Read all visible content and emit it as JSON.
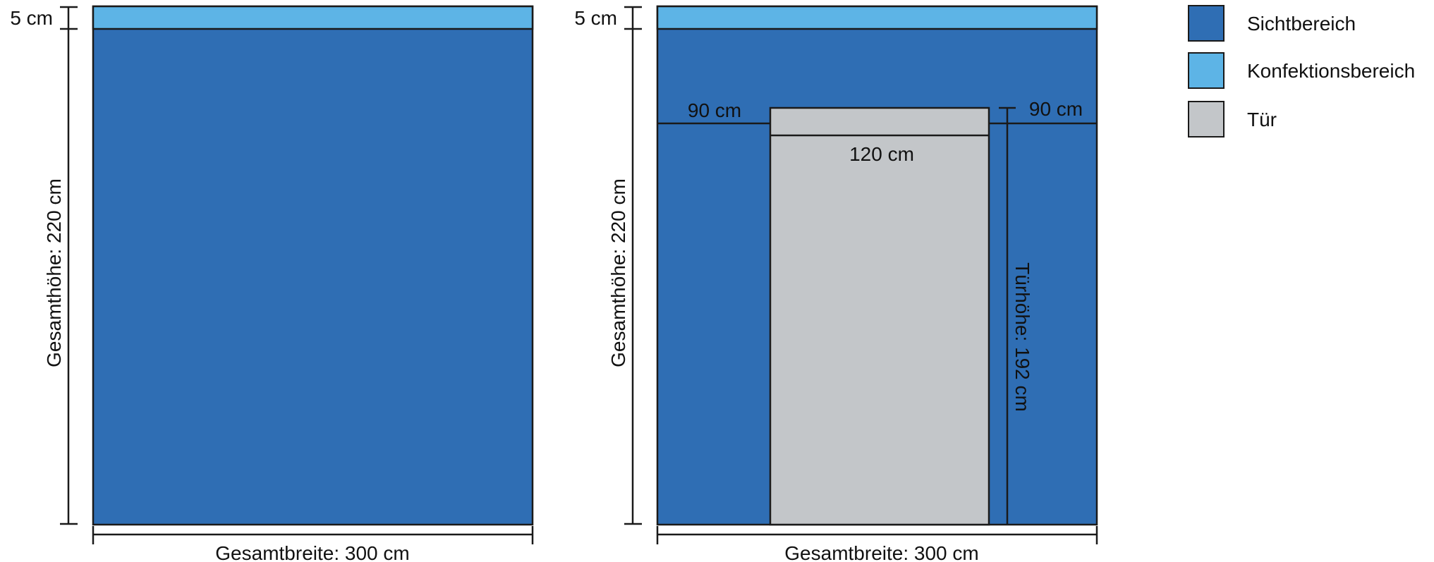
{
  "colors": {
    "sichtbereich": "#2f6eb4",
    "konfektionsbereich": "#5db4e6",
    "tuer": "#c3c6c9"
  },
  "diagram_left": {
    "top_label": "5 cm",
    "height_label": "Gesamthöhe: 220 cm",
    "width_label": "Gesamtbreite: 300 cm"
  },
  "diagram_right": {
    "top_label": "5 cm",
    "height_label": "Gesamthöhe: 220 cm",
    "width_label": "Gesamtbreite: 300 cm",
    "left_offset_label": "90 cm",
    "right_offset_label": "90 cm",
    "door_width_label": "120 cm",
    "door_height_label": "Türhöhe: 192 cm"
  },
  "legend": [
    {
      "label": "Sichtbereich",
      "color": "#2f6eb4"
    },
    {
      "label": "Konfektionsbereich",
      "color": "#5db4e6"
    },
    {
      "label": "Tür",
      "color": "#c3c6c9"
    }
  ]
}
